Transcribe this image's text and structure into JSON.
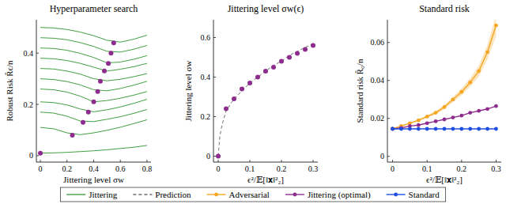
{
  "chart_data": [
    {
      "type": "line",
      "title": "Hyperparameter search",
      "x_label": "Jittering level σw",
      "y_label": "Robust Risk R̂ϵ/n",
      "xlim": [
        -0.03,
        0.83
      ],
      "ylim": [
        -0.025,
        0.53
      ],
      "xticks": [
        0,
        0.2,
        0.4,
        0.6,
        0.8
      ],
      "yticks": [
        0,
        0.2,
        0.4
      ],
      "x": [
        0,
        0.1,
        0.2,
        0.3,
        0.4,
        0.5,
        0.6,
        0.7,
        0.8
      ],
      "series": [
        {
          "name": "Jittering",
          "color": "#41a041",
          "values": [
            0.5,
            0.498,
            0.492,
            0.482,
            0.468,
            0.45,
            0.443,
            0.454,
            0.47
          ]
        },
        {
          "color": "#41a041",
          "values": [
            0.46,
            0.458,
            0.452,
            0.441,
            0.426,
            0.407,
            0.404,
            0.415,
            0.43
          ]
        },
        {
          "color": "#41a041",
          "values": [
            0.42,
            0.418,
            0.411,
            0.399,
            0.383,
            0.362,
            0.365,
            0.376,
            0.39
          ]
        },
        {
          "color": "#41a041",
          "values": [
            0.38,
            0.378,
            0.371,
            0.36,
            0.345,
            0.33,
            0.337,
            0.347,
            0.36
          ]
        },
        {
          "color": "#41a041",
          "values": [
            0.34,
            0.338,
            0.33,
            0.318,
            0.3,
            0.292,
            0.298,
            0.308,
            0.32
          ]
        },
        {
          "color": "#41a041",
          "values": [
            0.3,
            0.297,
            0.289,
            0.276,
            0.257,
            0.253,
            0.262,
            0.275,
            0.29
          ]
        },
        {
          "color": "#41a041",
          "values": [
            0.26,
            0.257,
            0.248,
            0.232,
            0.21,
            0.215,
            0.224,
            0.236,
            0.25
          ]
        },
        {
          "color": "#41a041",
          "values": [
            0.21,
            0.207,
            0.198,
            0.182,
            0.171,
            0.179,
            0.19,
            0.204,
            0.22
          ]
        },
        {
          "color": "#41a041",
          "values": [
            0.17,
            0.166,
            0.154,
            0.135,
            0.133,
            0.142,
            0.152,
            0.165,
            0.18
          ]
        },
        {
          "color": "#41a041",
          "values": [
            0.11,
            0.105,
            0.089,
            0.082,
            0.089,
            0.099,
            0.111,
            0.125,
            0.14
          ]
        },
        {
          "color": "#41a041",
          "values": [
            0.01,
            0.011,
            0.013,
            0.016,
            0.019,
            0.023,
            0.028,
            0.033,
            0.04
          ]
        },
        {
          "type": "scatter",
          "color": "#8e2c8e",
          "marker": "circle",
          "x": [
            0,
            0.24,
            0.32,
            0.36,
            0.4,
            0.43,
            0.45,
            0.48,
            0.51,
            0.53,
            0.55
          ],
          "values": [
            0.01,
            0.08,
            0.13,
            0.17,
            0.21,
            0.25,
            0.29,
            0.33,
            0.36,
            0.4,
            0.44
          ]
        }
      ]
    },
    {
      "type": "line",
      "title": "Jittering level σw(ϵ)",
      "x_label": "ϵ²/𝔼[‖𝐱‖²₂]",
      "y_label": "Jittering level σw",
      "xlim": [
        -0.015,
        0.315
      ],
      "ylim": [
        -0.03,
        0.69
      ],
      "xticks": [
        0,
        0.1,
        0.2,
        0.3
      ],
      "yticks": [
        0,
        0.2,
        0.4,
        0.6
      ],
      "series": [
        {
          "name": "Prediction",
          "color": "#707070",
          "line_style": "dashed",
          "x": [
            0,
            0.005,
            0.0125,
            0.025,
            0.05,
            0.075,
            0.1,
            0.125,
            0.15,
            0.175,
            0.2,
            0.225,
            0.25,
            0.275,
            0.3
          ],
          "values": [
            0,
            0.1,
            0.16,
            0.23,
            0.29,
            0.33,
            0.37,
            0.4,
            0.43,
            0.46,
            0.48,
            0.51,
            0.53,
            0.55,
            0.57
          ]
        },
        {
          "type": "scatter",
          "color": "#8e2c8e",
          "marker": "circle",
          "x": [
            0,
            0.025,
            0.05,
            0.075,
            0.1,
            0.125,
            0.15,
            0.175,
            0.2,
            0.225,
            0.25,
            0.275,
            0.3
          ],
          "values": [
            0,
            0.24,
            0.29,
            0.34,
            0.37,
            0.4,
            0.43,
            0.45,
            0.48,
            0.5,
            0.52,
            0.54,
            0.56
          ]
        }
      ]
    },
    {
      "type": "line",
      "title": "Standard risk",
      "x_label": "ϵ²/𝔼[‖𝐱‖²₂]",
      "y_label": "Standard risk R̂₀/n",
      "xlim": [
        -0.015,
        0.315
      ],
      "ylim": [
        -0.003,
        0.072
      ],
      "xticks": [
        0,
        0.1,
        0.2,
        0.3
      ],
      "yticks": [
        0,
        0.02,
        0.04,
        0.06
      ],
      "x": [
        0,
        0.025,
        0.05,
        0.075,
        0.1,
        0.125,
        0.15,
        0.175,
        0.2,
        0.225,
        0.25,
        0.275,
        0.3
      ],
      "series": [
        {
          "name": "Adversarial",
          "color": "#f5a623",
          "marker": "circle",
          "values": [
            0.0145,
            0.016,
            0.0175,
            0.019,
            0.021,
            0.023,
            0.026,
            0.03,
            0.034,
            0.039,
            0.045,
            0.055,
            0.069
          ],
          "errors": [
            0,
            0.0003,
            0.0004,
            0.0005,
            0.0007,
            0.0009,
            0.0011,
            0.0014,
            0.0018,
            0.0022,
            0.0028,
            0.0038,
            0.0055
          ]
        },
        {
          "name": "Jittering (optimal)",
          "color": "#8e2c8e",
          "marker": "circle",
          "values": [
            0.0145,
            0.015,
            0.016,
            0.0165,
            0.0175,
            0.0185,
            0.0195,
            0.0205,
            0.0215,
            0.023,
            0.024,
            0.025,
            0.0265
          ]
        },
        {
          "name": "Standard",
          "color": "#1f4fe0",
          "marker": "circle",
          "values": [
            0.0145,
            0.0145,
            0.0145,
            0.0145,
            0.0145,
            0.0145,
            0.0145,
            0.0145,
            0.0145,
            0.0145,
            0.0145,
            0.0145,
            0.0145
          ]
        }
      ]
    }
  ]
}
